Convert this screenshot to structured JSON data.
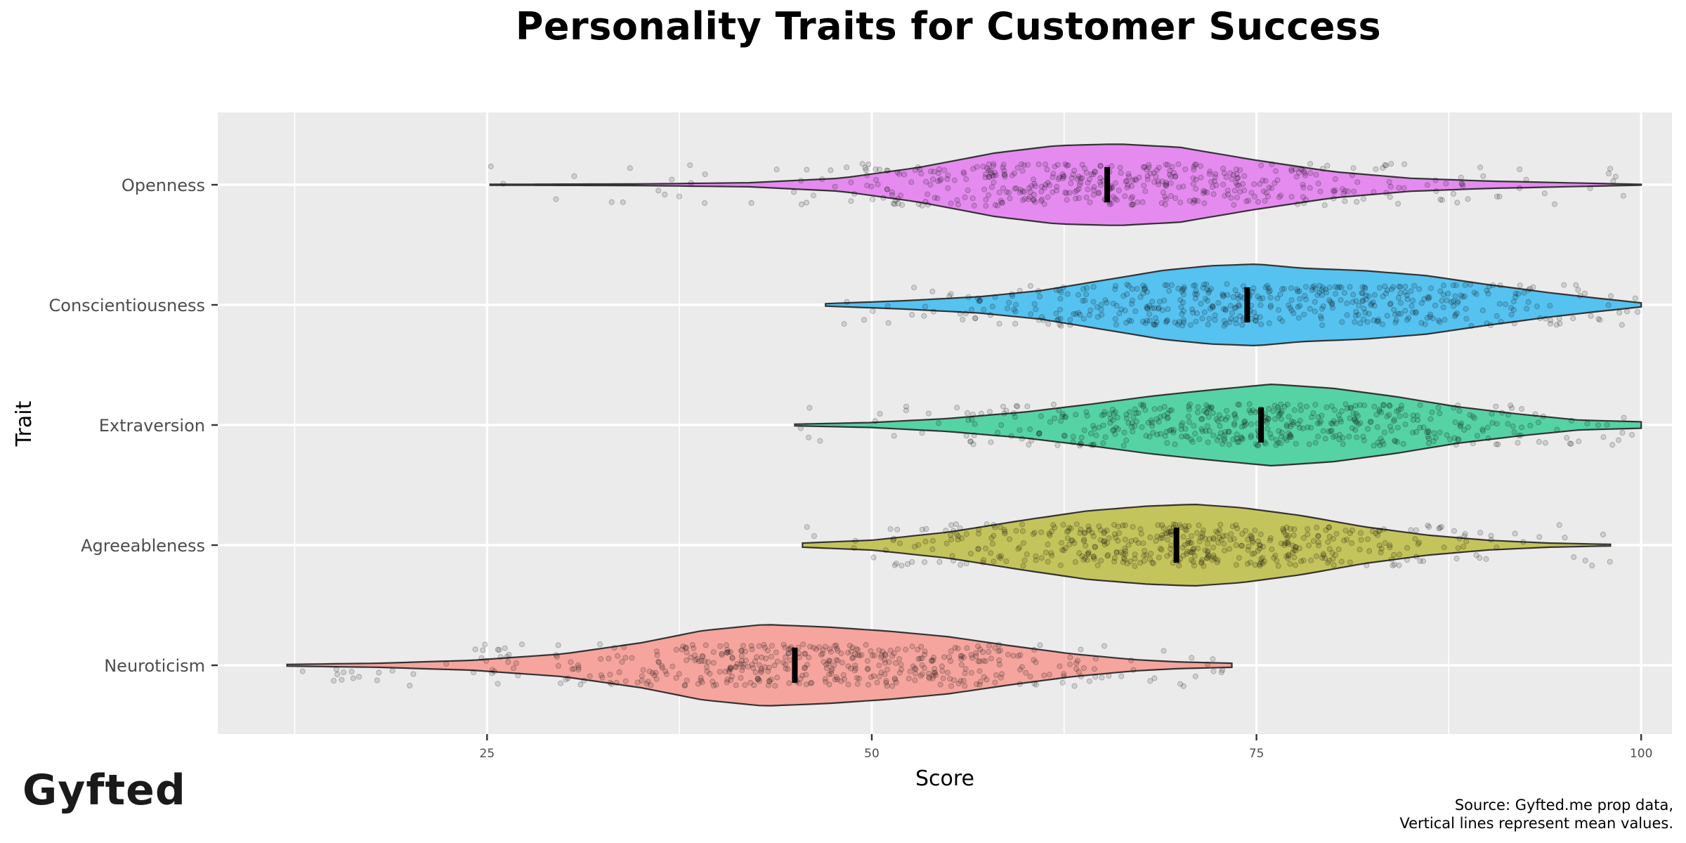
{
  "title": "Personality Traits for Customer Success",
  "logo_text": "Gyfted",
  "caption": {
    "line1": "Source: Gyfted.me prop data,",
    "line2": "Vertical lines represent mean values."
  },
  "chart_data": {
    "type": "violin",
    "title": "Personality Traits for Customer Success",
    "xlabel": "Score",
    "ylabel": "Trait",
    "xlim": [
      7.5,
      102
    ],
    "xticks": [
      25,
      50,
      75,
      100
    ],
    "xtick_labels": [
      "25",
      "50",
      "75",
      "100"
    ],
    "grid": true,
    "background": "#EBEBEB",
    "orientation": "horizontal",
    "series": [
      {
        "name": "Openness",
        "color": "#E58BF0",
        "min": 25.2,
        "max": 100,
        "mean": 65.3,
        "density": [
          [
            25.2,
            0.01
          ],
          [
            35,
            0.02
          ],
          [
            42,
            0.05
          ],
          [
            48,
            0.16
          ],
          [
            53,
            0.42
          ],
          [
            58,
            0.78
          ],
          [
            62,
            0.96
          ],
          [
            66,
            1.0
          ],
          [
            70,
            0.92
          ],
          [
            75,
            0.6
          ],
          [
            80,
            0.32
          ],
          [
            85,
            0.16
          ],
          [
            90,
            0.09
          ],
          [
            95,
            0.05
          ],
          [
            100,
            0.01
          ]
        ]
      },
      {
        "name": "Conscientiousness",
        "color": "#56C2F0",
        "min": 47,
        "max": 100,
        "mean": 74.4,
        "density": [
          [
            47,
            0.03
          ],
          [
            52,
            0.1
          ],
          [
            57,
            0.2
          ],
          [
            61,
            0.35
          ],
          [
            65,
            0.6
          ],
          [
            69,
            0.85
          ],
          [
            72,
            0.96
          ],
          [
            75,
            1.0
          ],
          [
            78,
            0.9
          ],
          [
            82,
            0.84
          ],
          [
            86,
            0.72
          ],
          [
            90,
            0.5
          ],
          [
            94,
            0.3
          ],
          [
            97,
            0.17
          ],
          [
            100,
            0.05
          ]
        ]
      },
      {
        "name": "Extraversion",
        "color": "#55D3A4",
        "min": 45,
        "max": 100,
        "mean": 75.3,
        "density": [
          [
            45,
            0.02
          ],
          [
            50,
            0.06
          ],
          [
            55,
            0.16
          ],
          [
            60,
            0.32
          ],
          [
            64,
            0.5
          ],
          [
            68,
            0.7
          ],
          [
            72,
            0.86
          ],
          [
            76,
            1.0
          ],
          [
            80,
            0.9
          ],
          [
            84,
            0.7
          ],
          [
            88,
            0.45
          ],
          [
            92,
            0.27
          ],
          [
            96,
            0.12
          ],
          [
            100,
            0.08
          ]
        ]
      },
      {
        "name": "Agreeableness",
        "color": "#C4C45C",
        "min": 45.5,
        "max": 98,
        "mean": 69.8,
        "density": [
          [
            45.5,
            0.05
          ],
          [
            50,
            0.12
          ],
          [
            55,
            0.32
          ],
          [
            60,
            0.62
          ],
          [
            64,
            0.84
          ],
          [
            68,
            0.96
          ],
          [
            71,
            1.0
          ],
          [
            74,
            0.92
          ],
          [
            78,
            0.72
          ],
          [
            82,
            0.45
          ],
          [
            86,
            0.25
          ],
          [
            90,
            0.12
          ],
          [
            94,
            0.05
          ],
          [
            98,
            0.02
          ]
        ]
      },
      {
        "name": "Neuroticism",
        "color": "#F5A59E",
        "min": 12,
        "max": 73.4,
        "mean": 45.0,
        "density": [
          [
            12,
            0.02
          ],
          [
            18,
            0.05
          ],
          [
            24,
            0.12
          ],
          [
            30,
            0.28
          ],
          [
            35,
            0.55
          ],
          [
            39,
            0.85
          ],
          [
            43,
            1.0
          ],
          [
            47,
            0.94
          ],
          [
            51,
            0.84
          ],
          [
            55,
            0.7
          ],
          [
            59,
            0.48
          ],
          [
            63,
            0.28
          ],
          [
            67,
            0.14
          ],
          [
            70,
            0.08
          ],
          [
            73.4,
            0.05
          ]
        ]
      }
    ]
  }
}
